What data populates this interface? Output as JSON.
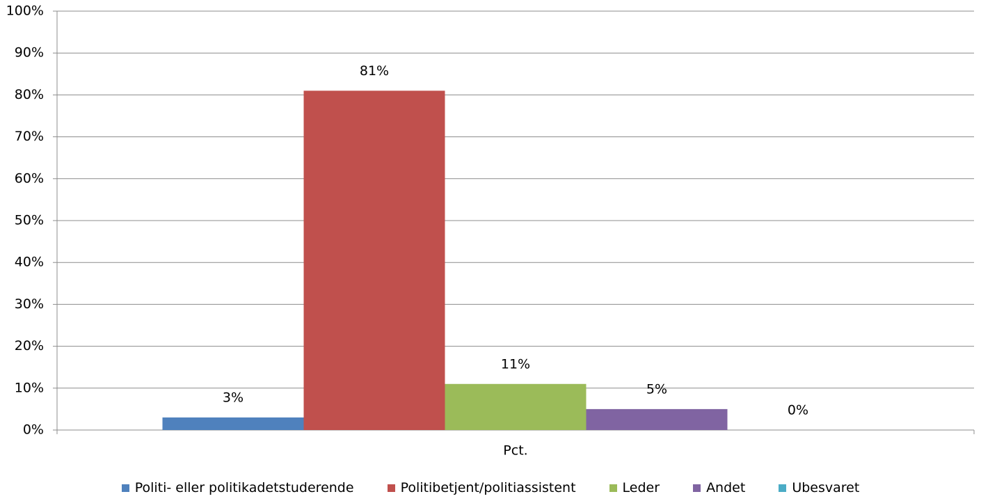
{
  "chart_data": {
    "type": "bar",
    "categories": [
      "Pct."
    ],
    "series": [
      {
        "name": "Politi- eller politikadetstuderende",
        "color": "#4f81bd",
        "values": [
          3
        ],
        "value_labels": [
          "3%"
        ]
      },
      {
        "name": "Politibetjent/politiassistent",
        "color": "#c0504d",
        "values": [
          81
        ],
        "value_labels": [
          "81%"
        ]
      },
      {
        "name": "Leder",
        "color": "#9bbb59",
        "values": [
          11
        ],
        "value_labels": [
          "11%"
        ]
      },
      {
        "name": "Andet",
        "color": "#8064a2",
        "values": [
          5
        ],
        "value_labels": [
          "5%"
        ]
      },
      {
        "name": "Ubesvaret",
        "color": "#4bacc6",
        "values": [
          0
        ],
        "value_labels": [
          "0%"
        ]
      }
    ],
    "ylim": [
      0,
      100
    ],
    "yticks": [
      {
        "value": 0,
        "label": "0%"
      },
      {
        "value": 10,
        "label": "10%"
      },
      {
        "value": 20,
        "label": "20%"
      },
      {
        "value": 30,
        "label": "30%"
      },
      {
        "value": 40,
        "label": "40%"
      },
      {
        "value": 50,
        "label": "50%"
      },
      {
        "value": 60,
        "label": "60%"
      },
      {
        "value": 70,
        "label": "70%"
      },
      {
        "value": 80,
        "label": "80%"
      },
      {
        "value": 90,
        "label": "90%"
      },
      {
        "value": 100,
        "label": "100%"
      }
    ],
    "grid": true,
    "legend": "bottom"
  }
}
